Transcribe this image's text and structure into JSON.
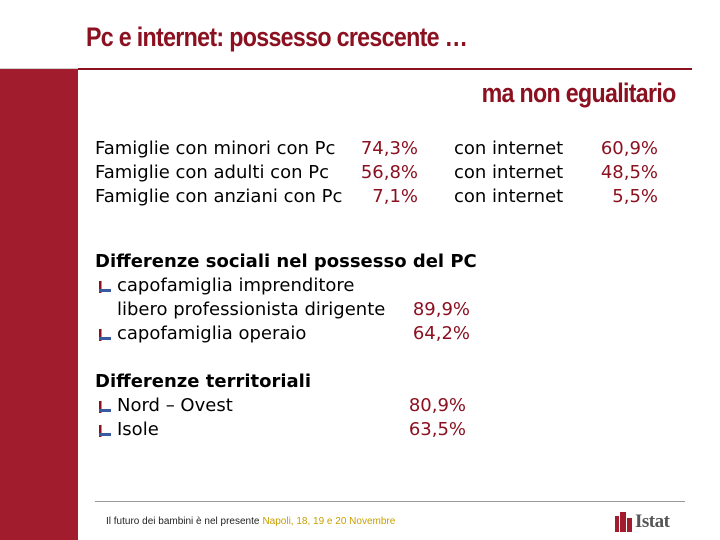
{
  "slide": {
    "title": "Pc e internet: possesso crescente …",
    "subtitle": "ma non egualitario"
  },
  "stats": [
    {
      "label": "Famiglie con minori con Pc",
      "pc_value": "74,3%",
      "internet_label": "con internet",
      "internet_value": "60,9%"
    },
    {
      "label": "Famiglie con adulti con Pc",
      "pc_value": "56,8%",
      "internet_label": "con internet",
      "internet_value": "48,5%"
    },
    {
      "label": "Famiglie con anziani con Pc",
      "pc_value": "7,1%",
      "internet_label": "con internet",
      "internet_value": "5,5%"
    }
  ],
  "social": {
    "heading": "Differenze sociali nel possesso del PC",
    "item1_line1": "capofamiglia imprenditore",
    "item1_line2": "libero professionista dirigente",
    "item1_value": "89,9%",
    "item2_label": "capofamiglia operaio",
    "item2_value": "64,2%"
  },
  "territorial": {
    "heading": "Differenze territoriali",
    "items": [
      {
        "label": "Nord – Ovest",
        "value": "80,9%"
      },
      {
        "label": "Isole",
        "value": "63,5%"
      }
    ]
  },
  "footer": {
    "text": "Il futuro dei bambini è nel presente",
    "event": "Napoli, 18, 19  e 20 Novembre",
    "logo_text": "Istat"
  },
  "colors": {
    "accent": "#8b1020",
    "sidebar": "#a11d2d",
    "footer_event": "#c8a000"
  }
}
